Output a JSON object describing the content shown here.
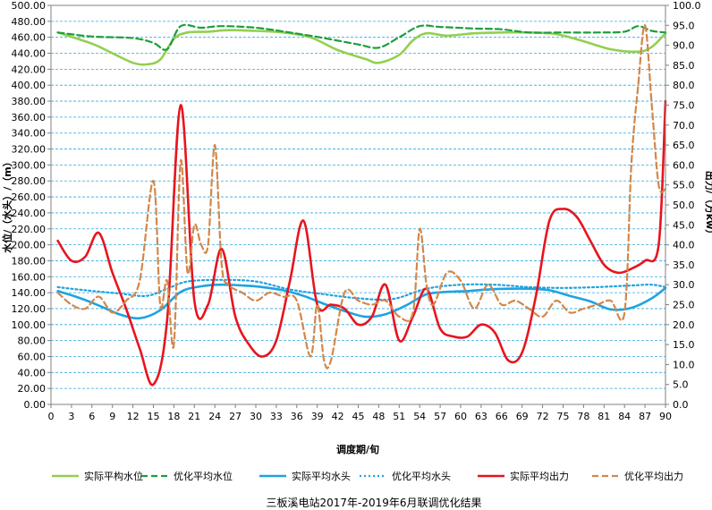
{
  "chart_data": {
    "type": "line",
    "title": "",
    "caption": "三板溪电站2017年-2019年6月联调优化结果",
    "xlabel": "调度期/旬",
    "ylabel_left": "水位/（水头）/（m）",
    "ylabel_right": "出力/（万kw）",
    "x_ticks": [
      0,
      3,
      6,
      9,
      12,
      15,
      18,
      21,
      24,
      27,
      30,
      33,
      36,
      39,
      42,
      45,
      48,
      51,
      54,
      57,
      60,
      63,
      66,
      69,
      72,
      75,
      78,
      81,
      84,
      87,
      90
    ],
    "xlim": [
      0,
      90
    ],
    "ylim_left": [
      0,
      500
    ],
    "ylim_right": [
      0,
      100
    ],
    "y_ticks_left": [
      "0.00",
      "20.00",
      "40.00",
      "60.00",
      "80.00",
      "100.00",
      "120.00",
      "140.00",
      "160.00",
      "180.00",
      "200.00",
      "220.00",
      "240.00",
      "260.00",
      "280.00",
      "300.00",
      "320.00",
      "340.00",
      "360.00",
      "380.00",
      "400.00",
      "420.00",
      "440.00",
      "460.00",
      "480.00",
      "500.00"
    ],
    "y_ticks_right": [
      "0.0",
      "5.0",
      "10.0",
      "15.0",
      "20.0",
      "25.0",
      "30.0",
      "35.0",
      "40.0",
      "45.0",
      "50.0",
      "55.0",
      "60.0",
      "65.0",
      "70.0",
      "75.0",
      "80.0",
      "85.0",
      "90.0",
      "95.0",
      "100.0"
    ],
    "grid": true,
    "legend_position": "bottom",
    "series": [
      {
        "name": "实际平构水位",
        "axis": "left",
        "color": "#92D050",
        "style": "solid",
        "x": [
          1,
          6,
          9,
          12,
          14,
          16,
          18,
          20,
          23,
          26,
          30,
          34,
          38,
          42,
          46,
          48,
          51,
          53,
          55,
          58,
          62,
          66,
          70,
          74,
          78,
          82,
          86,
          88,
          90
        ],
        "y": [
          466,
          452,
          440,
          428,
          426,
          432,
          458,
          466,
          467,
          469,
          468,
          466,
          460,
          444,
          433,
          428,
          438,
          456,
          465,
          462,
          465,
          466,
          466,
          464,
          455,
          445,
          442,
          448,
          465
        ]
      },
      {
        "name": "优化平均水位",
        "axis": "left",
        "color": "#1E9E3C",
        "style": "dash",
        "x": [
          1,
          6,
          12,
          15,
          17,
          19,
          22,
          25,
          30,
          35,
          40,
          45,
          48,
          51,
          54,
          57,
          62,
          66,
          70,
          75,
          80,
          84,
          86,
          88,
          90
        ],
        "y": [
          466,
          461,
          459,
          453,
          445,
          474,
          472,
          474,
          472,
          466,
          459,
          451,
          447,
          460,
          474,
          473,
          471,
          470,
          466,
          466,
          466,
          467,
          474,
          468,
          466
        ]
      },
      {
        "name": "实际平均水头",
        "axis": "left",
        "color": "#1FA3E0",
        "style": "solid",
        "x": [
          1,
          4,
          7,
          10,
          13,
          16,
          19,
          22,
          25,
          28,
          31,
          34,
          37,
          40,
          43,
          46,
          49,
          52,
          55,
          58,
          61,
          64,
          67,
          70,
          73,
          76,
          79,
          82,
          85,
          88,
          90
        ],
        "y": [
          142,
          134,
          124,
          113,
          108,
          118,
          141,
          148,
          150,
          149,
          147,
          143,
          136,
          126,
          117,
          110,
          113,
          124,
          138,
          141,
          142,
          144,
          145,
          145,
          143,
          136,
          129,
          119,
          121,
          133,
          146
        ]
      },
      {
        "name": "优化平均水头",
        "axis": "left",
        "color": "#1FA3E0",
        "style": "dot",
        "x": [
          1,
          5,
          10,
          14,
          17,
          20,
          25,
          30,
          35,
          40,
          45,
          50,
          55,
          60,
          65,
          70,
          75,
          80,
          85,
          88,
          90
        ],
        "y": [
          147,
          143,
          139,
          136,
          145,
          154,
          156,
          154,
          144,
          138,
          133,
          132,
          145,
          150,
          150,
          147,
          146,
          147,
          149,
          150,
          147
        ]
      },
      {
        "name": "实际平均出力",
        "axis": "right",
        "color": "#E8141E",
        "style": "solid",
        "x": [
          1,
          3,
          5,
          7,
          9,
          11,
          13,
          15,
          17,
          19,
          21,
          23,
          25,
          27,
          29,
          31,
          33,
          35,
          37,
          39,
          41,
          43,
          45,
          47,
          49,
          51,
          53,
          55,
          57,
          59,
          61,
          63,
          65,
          67,
          69,
          71,
          73,
          75,
          77,
          79,
          81,
          83,
          85,
          87,
          89,
          90
        ],
        "y": [
          41,
          36,
          37,
          43,
          33,
          24,
          14,
          5,
          21,
          75,
          26,
          25,
          39,
          22,
          15,
          12,
          16,
          31,
          46,
          25,
          25,
          24,
          20,
          22,
          30,
          16,
          22,
          29,
          19,
          17,
          17,
          20,
          18,
          11,
          13,
          27,
          46,
          49,
          47,
          41,
          35,
          33,
          34,
          36,
          40,
          76
        ]
      },
      {
        "name": "优化平均出力",
        "axis": "right",
        "color": "#D2874B",
        "style": "dash",
        "x": [
          1,
          3,
          5,
          7,
          9,
          11,
          13,
          15,
          16,
          17,
          18,
          19,
          20,
          21,
          22,
          23,
          24,
          25,
          26,
          28,
          30,
          32,
          34,
          36,
          38,
          39,
          40,
          41,
          43,
          45,
          47,
          49,
          51,
          53,
          54,
          55,
          56,
          58,
          60,
          62,
          64,
          66,
          68,
          70,
          72,
          74,
          76,
          78,
          80,
          82,
          84,
          85,
          86,
          87,
          88,
          89,
          90
        ],
        "y": [
          28,
          25,
          24,
          27,
          23,
          26,
          31,
          56,
          25,
          31,
          15,
          61,
          33,
          45,
          40,
          40,
          65,
          35,
          30,
          28,
          26,
          28,
          27,
          26,
          12,
          25,
          11,
          11,
          28,
          26,
          25,
          26,
          22,
          23,
          44,
          30,
          25,
          33,
          31,
          24,
          30,
          25,
          26,
          24,
          22,
          26,
          23,
          24,
          25,
          26,
          23,
          60,
          80,
          95,
          75,
          55,
          54
        ]
      }
    ]
  }
}
